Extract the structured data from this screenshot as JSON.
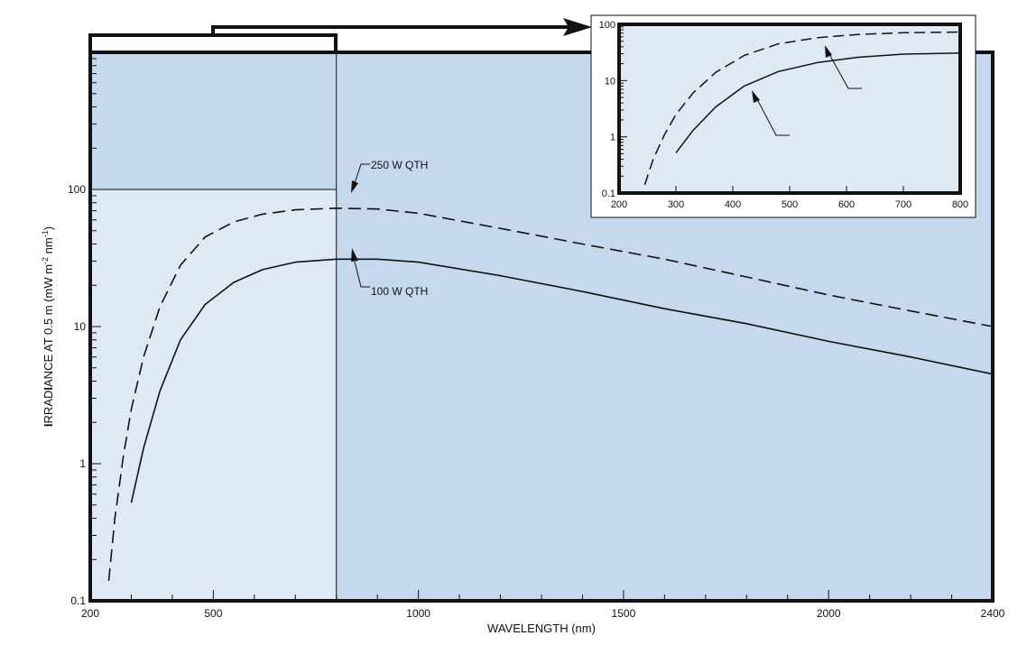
{
  "colors": {
    "plot_bg": "#c5d8ee",
    "highlight_bg": "#dfe9f6",
    "line": "#111111"
  },
  "chart_data": [
    {
      "type": "line",
      "xlabel": "WAVELENGTH (nm)",
      "ylabel": "IRRADIANCE AT 0.5 m (mW m-2 nm-1)",
      "ylabel_parts": [
        "I",
        "RRAD",
        "I",
        "ANCE AT 0.5 m (mW m",
        "-2",
        " nm",
        "-1",
        ")"
      ],
      "xlim": [
        200,
        2400
      ],
      "ylim": [
        0.1,
        1000
      ],
      "yscale": "log",
      "xticks": [
        200,
        500,
        1000,
        1500,
        2000,
        2400
      ],
      "xtick_labels": [
        "200",
        "500",
        "1000",
        "1500",
        "2000",
        "2400"
      ],
      "yticks": [
        0.1,
        1,
        10,
        100
      ],
      "ytick_labels": [
        "0.1",
        "1",
        "10",
        "100"
      ],
      "highlight_region": {
        "x": [
          200,
          800
        ],
        "y": [
          0.1,
          100
        ]
      },
      "series": [
        {
          "name": "250 W QTH",
          "style": "dashed",
          "x": [
            245,
            260,
            280,
            300,
            330,
            370,
            420,
            480,
            550,
            620,
            700,
            800,
            900,
            1000,
            1200,
            1400,
            1600,
            1800,
            2000,
            2200,
            2400
          ],
          "y": [
            0.14,
            0.4,
            1.1,
            2.5,
            6,
            14,
            28,
            45,
            58,
            66,
            71,
            73,
            72,
            67,
            52,
            40,
            31,
            23,
            17,
            13,
            10
          ]
        },
        {
          "name": "100 W QTH",
          "style": "solid",
          "x": [
            300,
            330,
            370,
            420,
            480,
            550,
            620,
            700,
            800,
            900,
            1000,
            1200,
            1400,
            1600,
            1800,
            2000,
            2200,
            2400
          ],
          "y": [
            0.52,
            1.3,
            3.4,
            8,
            14.5,
            21,
            26,
            29.5,
            31,
            31,
            29.5,
            23.5,
            18,
            13.5,
            10.5,
            7.8,
            6,
            4.5
          ]
        }
      ],
      "annotations": [
        "250 W QTH",
        "100 W QTH"
      ]
    },
    {
      "type": "line",
      "role": "inset",
      "xlim": [
        200,
        800
      ],
      "ylim": [
        0.1,
        100
      ],
      "yscale": "log",
      "xticks": [
        200,
        300,
        400,
        500,
        600,
        700,
        800
      ],
      "xtick_labels": [
        "200",
        "300",
        "400",
        "500",
        "600",
        "700",
        "800"
      ],
      "yticks": [
        0.1,
        1,
        10,
        100
      ],
      "ytick_labels": [
        "0.1",
        "1",
        "10",
        "100"
      ],
      "series": [
        {
          "style": "dashed",
          "x": [
            245,
            260,
            280,
            300,
            330,
            370,
            420,
            480,
            550,
            620,
            700,
            800
          ],
          "y": [
            0.14,
            0.4,
            1.1,
            2.5,
            6,
            14,
            28,
            45,
            58,
            66,
            71,
            73
          ]
        },
        {
          "style": "solid",
          "x": [
            300,
            330,
            370,
            420,
            480,
            550,
            620,
            700,
            800
          ],
          "y": [
            0.52,
            1.3,
            3.4,
            8,
            14.5,
            21,
            26,
            29.5,
            31
          ]
        }
      ]
    }
  ]
}
